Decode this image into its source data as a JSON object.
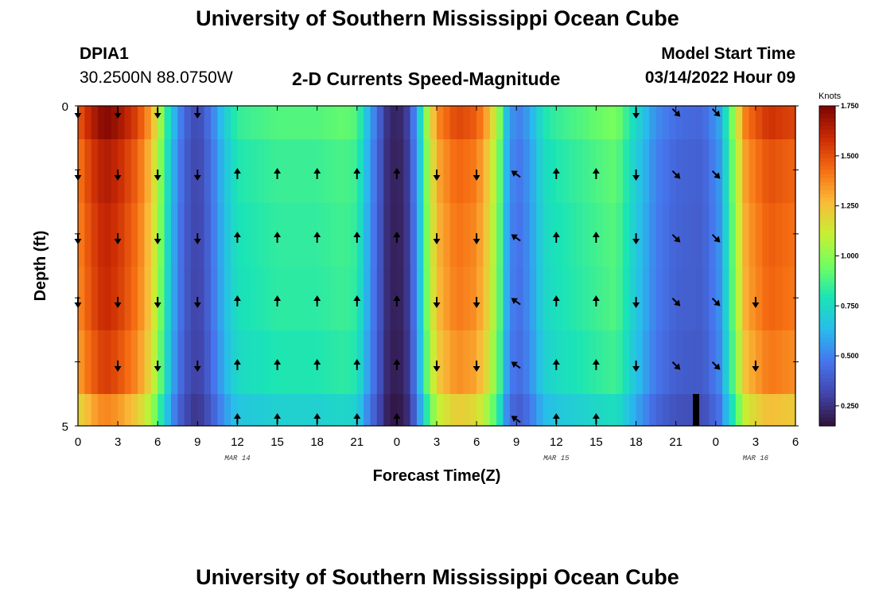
{
  "header": {
    "title": "University of Southern Mississippi Ocean Cube",
    "station": "DPIA1",
    "coords": "30.2500N  88.0750W",
    "subtitle": "2-D Currents Speed-Magnitude",
    "model_label": "Model Start Time",
    "model_time": "03/14/2022 Hour 09",
    "bottom_title": "University of Southern Mississippi Ocean Cube"
  },
  "colorbar": {
    "unit": "Knots",
    "ticks": [
      "1.750",
      "1.500",
      "1.250",
      "1.000",
      "0.750",
      "0.500",
      "0.250"
    ],
    "tick_values": [
      1.75,
      1.5,
      1.25,
      1.0,
      0.75,
      0.5,
      0.25
    ],
    "range": [
      0.15,
      1.75
    ]
  },
  "chart_data": {
    "type": "heatmap",
    "title": "2-D Currents Speed-Magnitude",
    "xlabel": "Forecast Time(Z)",
    "ylabel": "Depth (ft)",
    "x_ticks": [
      "0",
      "3",
      "6",
      "9",
      "12",
      "15",
      "18",
      "21",
      "0",
      "3",
      "6",
      "9",
      "12",
      "15",
      "18",
      "21",
      "0",
      "3",
      "6"
    ],
    "y_ticks": [
      "0",
      "5"
    ],
    "ylim": [
      0,
      5
    ],
    "date_labels": [
      {
        "text": "MAR 14",
        "at_tick": 4
      },
      {
        "text": "MAR 15",
        "at_tick": 12
      },
      {
        "text": "MAR 16",
        "at_tick": 17
      }
    ],
    "hours": [
      0,
      3,
      6,
      9,
      12,
      15,
      18,
      21,
      24,
      27,
      30,
      33,
      36,
      39,
      42,
      45,
      48,
      51,
      54
    ],
    "depth_rows": 5,
    "speed_profile": [
      {
        "t": 0,
        "v": 1.4
      },
      {
        "t": 1,
        "v": 1.55
      },
      {
        "t": 2,
        "v": 1.65
      },
      {
        "t": 3,
        "v": 1.6
      },
      {
        "t": 4.5,
        "v": 1.45
      },
      {
        "t": 5.5,
        "v": 1.25
      },
      {
        "t": 6.3,
        "v": 0.95
      },
      {
        "t": 7,
        "v": 0.65
      },
      {
        "t": 8,
        "v": 0.4
      },
      {
        "t": 9,
        "v": 0.3
      },
      {
        "t": 10,
        "v": 0.45
      },
      {
        "t": 11,
        "v": 0.65
      },
      {
        "t": 12,
        "v": 0.8
      },
      {
        "t": 15,
        "v": 0.85
      },
      {
        "t": 18,
        "v": 0.85
      },
      {
        "t": 20,
        "v": 0.88
      },
      {
        "t": 21,
        "v": 0.85
      },
      {
        "t": 22,
        "v": 0.55
      },
      {
        "t": 23.2,
        "v": 0.25
      },
      {
        "t": 24,
        "v": 0.18
      },
      {
        "t": 24.8,
        "v": 0.28
      },
      {
        "t": 25.5,
        "v": 0.55
      },
      {
        "t": 26.2,
        "v": 0.95
      },
      {
        "t": 27,
        "v": 1.3
      },
      {
        "t": 28.5,
        "v": 1.45
      },
      {
        "t": 30,
        "v": 1.4
      },
      {
        "t": 31,
        "v": 1.2
      },
      {
        "t": 31.8,
        "v": 0.9
      },
      {
        "t": 32.3,
        "v": 0.6
      },
      {
        "t": 33,
        "v": 0.45
      },
      {
        "t": 34,
        "v": 0.55
      },
      {
        "t": 35,
        "v": 0.75
      },
      {
        "t": 36,
        "v": 0.8
      },
      {
        "t": 39,
        "v": 0.88
      },
      {
        "t": 40.5,
        "v": 0.92
      },
      {
        "t": 42,
        "v": 0.7
      },
      {
        "t": 43.5,
        "v": 0.5
      },
      {
        "t": 45,
        "v": 0.42
      },
      {
        "t": 47,
        "v": 0.4
      },
      {
        "t": 48.3,
        "v": 0.55
      },
      {
        "t": 49.3,
        "v": 0.95
      },
      {
        "t": 50.3,
        "v": 1.35
      },
      {
        "t": 52,
        "v": 1.5
      },
      {
        "t": 54,
        "v": 1.45
      }
    ],
    "depth_factor": [
      1.05,
      1.0,
      0.98,
      0.97,
      0.94,
      0.84
    ],
    "arrows": [
      {
        "depth": 0,
        "dirs": [
          "S",
          "S",
          "S",
          "S",
          null,
          null,
          null,
          null,
          null,
          null,
          null,
          null,
          null,
          null,
          "S",
          "SE",
          "SE",
          null,
          null
        ]
      },
      {
        "depth": 1,
        "dirs": [
          "S",
          "S",
          "S",
          "S",
          "N",
          "N",
          "N",
          "N",
          "N",
          "S",
          "S",
          "NW",
          "N",
          "N",
          "S",
          "SE",
          "SE",
          null,
          null
        ]
      },
      {
        "depth": 2,
        "dirs": [
          "S",
          "S",
          "S",
          "S",
          "N",
          "N",
          "N",
          "N",
          "N",
          "S",
          "S",
          "NW",
          "N",
          "N",
          "S",
          "SE",
          "SE",
          null,
          null
        ]
      },
      {
        "depth": 3,
        "dirs": [
          "S",
          "S",
          "S",
          "S",
          "N",
          "N",
          "N",
          "N",
          "N",
          "S",
          "S",
          "NW",
          "N",
          "N",
          "S",
          "SE",
          "SE",
          "S",
          null
        ]
      },
      {
        "depth": 4,
        "dirs": [
          null,
          "S",
          "S",
          "S",
          "N",
          "N",
          "N",
          "N",
          "N",
          "S",
          "S",
          "NW",
          "N",
          "N",
          "S",
          "SE",
          "SE",
          "S",
          null
        ]
      },
      {
        "depth": 5,
        "dirs": [
          null,
          null,
          null,
          null,
          "N",
          "N",
          "N",
          "N",
          "N",
          null,
          null,
          "NW",
          "N",
          "N",
          null,
          null,
          null,
          null,
          null
        ]
      }
    ]
  }
}
